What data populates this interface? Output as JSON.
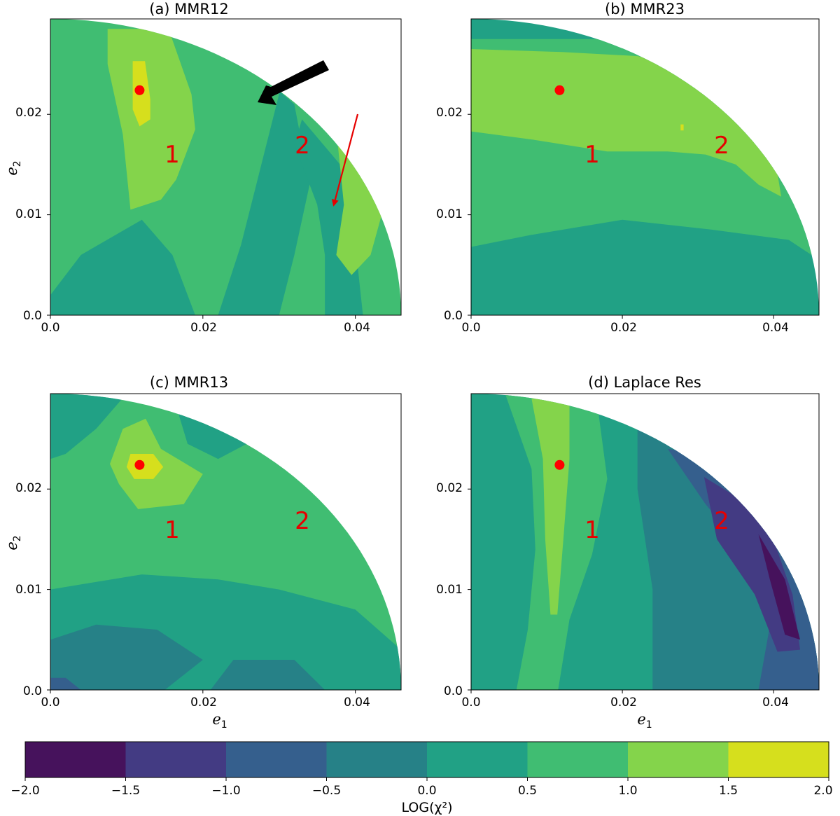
{
  "chart_data": {
    "type": "heatmap",
    "panels": [
      {
        "id": "a",
        "title": "(a) MMR12",
        "xlabel": "",
        "ylabel": "e2",
        "xlim": [
          0,
          0.046
        ],
        "ylim": [
          0,
          0.0295
        ],
        "xticks": [
          "0.0",
          "0.02",
          "0.04"
        ],
        "yticks": [
          "0.0",
          "0.01",
          "0.02"
        ],
        "best_fit": {
          "e1": 0.0117,
          "e2": 0.0224
        },
        "regions": [
          {
            "label": "1",
            "e1": 0.0161,
            "e2": 0.0162
          },
          {
            "label": "2",
            "e1": 0.0333,
            "e2": 0.0168
          }
        ],
        "background_level": 0.75,
        "zones": [
          {
            "level": 0.25,
            "poly": [
              [
                0.0,
                0.0
              ],
              [
                0.019,
                0.0
              ],
              [
                0.016,
                0.006
              ],
              [
                0.012,
                0.0095
              ],
              [
                0.004,
                0.006
              ],
              [
                0.0,
                0.002
              ]
            ]
          },
          {
            "level": 0.25,
            "poly": [
              [
                0.021,
                0.0295
              ],
              [
                0.029,
                0.0295
              ],
              [
                0.03,
                0.022
              ],
              [
                0.027,
                0.013
              ],
              [
                0.025,
                0.007
              ],
              [
                0.022,
                0.0
              ],
              [
                0.03,
                0.0
              ],
              [
                0.032,
                0.006
              ],
              [
                0.034,
                0.013
              ],
              [
                0.032,
                0.021
              ],
              [
                0.026,
                0.025
              ]
            ]
          },
          {
            "level": 0.25,
            "poly": [
              [
                0.033,
                0.0195
              ],
              [
                0.038,
                0.015
              ],
              [
                0.04,
                0.007
              ],
              [
                0.041,
                0.0
              ],
              [
                0.036,
                0.0
              ],
              [
                0.036,
                0.006
              ],
              [
                0.035,
                0.011
              ],
              [
                0.032,
                0.017
              ]
            ]
          },
          {
            "level": 1.25,
            "poly": [
              [
                0.0075,
                0.0285
              ],
              [
                0.0155,
                0.0285
              ],
              [
                0.0185,
                0.022
              ],
              [
                0.019,
                0.0185
              ],
              [
                0.0165,
                0.0135
              ],
              [
                0.0145,
                0.0115
              ],
              [
                0.0105,
                0.0105
              ],
              [
                0.0095,
                0.018
              ],
              [
                0.0075,
                0.025
              ]
            ]
          },
          {
            "level": 1.25,
            "poly": [
              [
                0.0375,
                0.0185
              ],
              [
                0.0405,
                0.0165
              ],
              [
                0.044,
                0.0115
              ],
              [
                0.042,
                0.006
              ],
              [
                0.0395,
                0.004
              ],
              [
                0.0375,
                0.006
              ],
              [
                0.0385,
                0.011
              ]
            ]
          },
          {
            "level": 1.75,
            "poly": [
              [
                0.0108,
                0.0253
              ],
              [
                0.0124,
                0.0253
              ],
              [
                0.0131,
                0.0215
              ],
              [
                0.0131,
                0.0195
              ],
              [
                0.0117,
                0.0188
              ],
              [
                0.0108,
                0.0205
              ]
            ]
          }
        ]
      },
      {
        "id": "b",
        "title": "(b) MMR23",
        "xlabel": "",
        "ylabel": "",
        "xlim": [
          0,
          0.046
        ],
        "ylim": [
          0,
          0.0295
        ],
        "xticks": [
          "0.0",
          "0.02",
          "0.04"
        ],
        "yticks": [
          "0.0",
          "0.01",
          "0.02"
        ],
        "best_fit": {
          "e1": 0.0117,
          "e2": 0.0224
        },
        "regions": [
          {
            "label": "1",
            "e1": 0.0161,
            "e2": 0.0162
          },
          {
            "label": "2",
            "e1": 0.0331,
            "e2": 0.0168
          }
        ],
        "background_level": 0.25,
        "zones": [
          {
            "level": 0.75,
            "poly": [
              [
                0.0,
                0.0275
              ],
              [
                0.027,
                0.0275
              ],
              [
                0.036,
                0.0235
              ],
              [
                0.042,
                0.0185
              ],
              [
                0.046,
                0.0155
              ],
              [
                0.046,
                0.0055
              ],
              [
                0.042,
                0.0075
              ],
              [
                0.032,
                0.0085
              ],
              [
                0.02,
                0.0095
              ],
              [
                0.008,
                0.008
              ],
              [
                0.0,
                0.0068
              ]
            ]
          },
          {
            "level": 1.25,
            "poly": [
              [
                0.0,
                0.0265
              ],
              [
                0.012,
                0.0262
              ],
              [
                0.022,
                0.0258
              ],
              [
                0.028,
                0.0248
              ],
              [
                0.033,
                0.0228
              ],
              [
                0.037,
                0.0195
              ],
              [
                0.04,
                0.0165
              ],
              [
                0.041,
                0.0118
              ],
              [
                0.038,
                0.013
              ],
              [
                0.035,
                0.015
              ],
              [
                0.031,
                0.016
              ],
              [
                0.026,
                0.0163
              ],
              [
                0.018,
                0.0163
              ],
              [
                0.008,
                0.0175
              ],
              [
                0.0,
                0.0183
              ]
            ]
          },
          {
            "level": 1.75,
            "poly": [
              [
                0.0277,
                0.019
              ],
              [
                0.0281,
                0.019
              ],
              [
                0.0281,
                0.0184
              ],
              [
                0.0277,
                0.0184
              ]
            ]
          }
        ]
      },
      {
        "id": "c",
        "title": "(c) MMR13",
        "xlabel": "e1",
        "ylabel": "e2",
        "xlim": [
          0,
          0.046
        ],
        "ylim": [
          0,
          0.0295
        ],
        "xticks": [
          "0.0",
          "0.02",
          "0.04"
        ],
        "yticks": [
          "0.0",
          "0.01",
          "0.02"
        ],
        "best_fit": {
          "e1": 0.0117,
          "e2": 0.0224
        },
        "regions": [
          {
            "label": "1",
            "e1": 0.0161,
            "e2": 0.0162
          },
          {
            "label": "2",
            "e1": 0.0333,
            "e2": 0.0168
          }
        ],
        "background_level": 0.75,
        "zones": [
          {
            "level": 0.25,
            "poly": [
              [
                0.0,
                0.0
              ],
              [
                0.046,
                0.0
              ],
              [
                0.046,
                0.004
              ],
              [
                0.04,
                0.008
              ],
              [
                0.03,
                0.01
              ],
              [
                0.022,
                0.011
              ],
              [
                0.012,
                0.0115
              ],
              [
                0.004,
                0.0105
              ],
              [
                0.0,
                0.01
              ]
            ]
          },
          {
            "level": 0.25,
            "poly": [
              [
                0.0,
                0.0295
              ],
              [
                0.01,
                0.0295
              ],
              [
                0.006,
                0.026
              ],
              [
                0.002,
                0.0235
              ],
              [
                0.0,
                0.023
              ]
            ]
          },
          {
            "level": 0.25,
            "poly": [
              [
                0.016,
                0.0295
              ],
              [
                0.029,
                0.0295
              ],
              [
                0.027,
                0.025
              ],
              [
                0.022,
                0.023
              ],
              [
                0.018,
                0.0245
              ]
            ]
          },
          {
            "level": -0.25,
            "poly": [
              [
                0.0,
                0.0
              ],
              [
                0.015,
                0.0
              ],
              [
                0.02,
                0.003
              ],
              [
                0.014,
                0.006
              ],
              [
                0.006,
                0.0065
              ],
              [
                0.0,
                0.005
              ]
            ]
          },
          {
            "level": -0.25,
            "poly": [
              [
                0.021,
                0.0
              ],
              [
                0.036,
                0.0
              ],
              [
                0.032,
                0.003
              ],
              [
                0.024,
                0.003
              ]
            ]
          },
          {
            "level": -0.75,
            "poly": [
              [
                0.0,
                0.0
              ],
              [
                0.004,
                0.0
              ],
              [
                0.002,
                0.0012
              ],
              [
                0.0,
                0.0012
              ]
            ]
          },
          {
            "level": 1.25,
            "poly": [
              [
                0.0095,
                0.026
              ],
              [
                0.0125,
                0.027
              ],
              [
                0.0145,
                0.024
              ],
              [
                0.02,
                0.0215
              ],
              [
                0.0175,
                0.0185
              ],
              [
                0.0115,
                0.018
              ],
              [
                0.009,
                0.0205
              ],
              [
                0.0078,
                0.0225
              ]
            ]
          },
          {
            "level": 1.75,
            "poly": [
              [
                0.0105,
                0.0235
              ],
              [
                0.0135,
                0.0235
              ],
              [
                0.0148,
                0.0222
              ],
              [
                0.0135,
                0.021
              ],
              [
                0.011,
                0.021
              ],
              [
                0.01,
                0.0222
              ]
            ]
          }
        ]
      },
      {
        "id": "d",
        "title": "(d) Laplace Res",
        "xlabel": "e1",
        "ylabel": "",
        "xlim": [
          0,
          0.046
        ],
        "ylim": [
          0,
          0.0295
        ],
        "xticks": [
          "0.0",
          "0.02",
          "0.04"
        ],
        "yticks": [
          "0.0",
          "0.01",
          "0.02"
        ],
        "best_fit": {
          "e1": 0.0117,
          "e2": 0.0224
        },
        "regions": [
          {
            "label": "1",
            "e1": 0.0161,
            "e2": 0.0162
          },
          {
            "label": "2",
            "e1": 0.0331,
            "e2": 0.0168
          }
        ],
        "background_level": 0.25,
        "zones": [
          {
            "level": -0.25,
            "poly": [
              [
                0.022,
                0.0295
              ],
              [
                0.036,
                0.0245
              ],
              [
                0.046,
                0.013
              ],
              [
                0.046,
                0.0
              ],
              [
                0.024,
                0.0
              ],
              [
                0.024,
                0.01
              ],
              [
                0.022,
                0.02
              ]
            ]
          },
          {
            "level": -0.75,
            "poly": [
              [
                0.026,
                0.024
              ],
              [
                0.034,
                0.023
              ],
              [
                0.041,
                0.0185
              ],
              [
                0.046,
                0.008
              ],
              [
                0.046,
                0.0
              ],
              [
                0.038,
                0.0
              ],
              [
                0.04,
                0.0085
              ],
              [
                0.036,
                0.014
              ],
              [
                0.031,
                0.0185
              ]
            ]
          },
          {
            "level": -1.25,
            "poly": [
              [
                0.0308,
                0.0212
              ],
              [
                0.0345,
                0.0195
              ],
              [
                0.0395,
                0.016
              ],
              [
                0.0425,
                0.0095
              ],
              [
                0.0435,
                0.004
              ],
              [
                0.0405,
                0.0038
              ],
              [
                0.0375,
                0.0095
              ],
              [
                0.0325,
                0.015
              ]
            ]
          },
          {
            "level": -1.75,
            "poly": [
              [
                0.038,
                0.0155
              ],
              [
                0.0415,
                0.011
              ],
              [
                0.0435,
                0.005
              ],
              [
                0.0415,
                0.0055
              ],
              [
                0.0395,
                0.011
              ]
            ]
          },
          {
            "level": 0.75,
            "poly": [
              [
                0.0045,
                0.0295
              ],
              [
                0.0165,
                0.0295
              ],
              [
                0.018,
                0.021
              ],
              [
                0.016,
                0.0135
              ],
              [
                0.013,
                0.007
              ],
              [
                0.0115,
                0.0
              ],
              [
                0.006,
                0.0
              ],
              [
                0.0075,
                0.006
              ],
              [
                0.0085,
                0.014
              ],
              [
                0.008,
                0.022
              ]
            ]
          },
          {
            "level": 1.25,
            "poly": [
              [
                0.008,
                0.029
              ],
              [
                0.013,
                0.029
              ],
              [
                0.013,
                0.023
              ],
              [
                0.0122,
                0.015
              ],
              [
                0.0114,
                0.0075
              ],
              [
                0.0105,
                0.0075
              ],
              [
                0.0098,
                0.015
              ],
              [
                0.0095,
                0.023
              ]
            ]
          }
        ]
      }
    ],
    "colorbar": {
      "label": "LOG(χ²)",
      "ticks": [
        "−2.0",
        "−1.5",
        "−1.0",
        "−0.5",
        "0.0",
        "0.5",
        "1.0",
        "1.5",
        "2.0"
      ],
      "range": [
        -2.0,
        2.0
      ],
      "levels": [
        -1.75,
        -1.25,
        -0.75,
        -0.25,
        0.25,
        0.75,
        1.25,
        1.75
      ],
      "colors": [
        "#46125c",
        "#433b83",
        "#355f8d",
        "#268187",
        "#21a185",
        "#40bd72",
        "#84d44b",
        "#d6df1d"
      ]
    },
    "annotations": {
      "black_arrow": true,
      "red_arrow": true,
      "arrow_colors": {
        "black": "#000000",
        "red": "#e60000"
      }
    }
  }
}
